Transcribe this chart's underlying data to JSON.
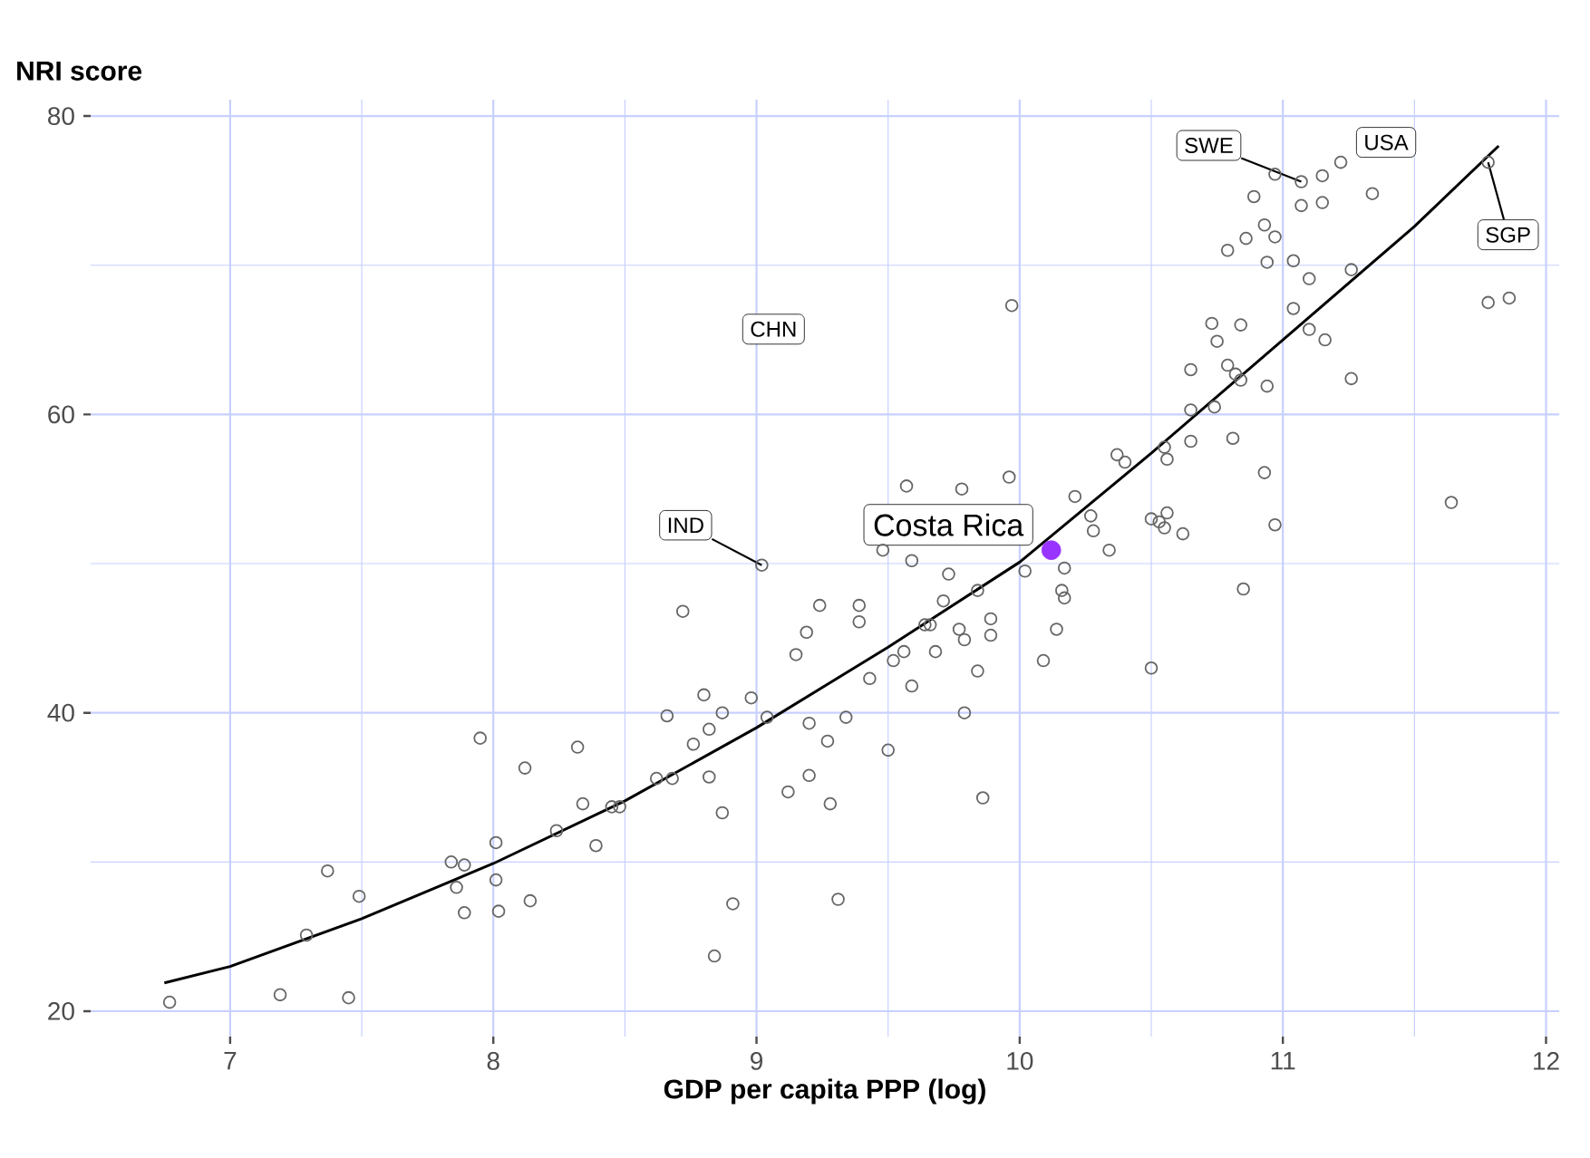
{
  "chart_data": {
    "type": "scatter",
    "xlabel": "GDP per capita PPP (log)",
    "ylabel": "NRI score",
    "xlim": [
      6.47,
      12.05
    ],
    "ylim": [
      18.3,
      81.1
    ],
    "xticks": [
      7,
      {
        "value": 7.5,
        "label": null
      },
      8,
      {
        "value": 8.5,
        "label": null
      },
      9,
      {
        "value": 9.5,
        "label": null
      },
      10,
      {
        "value": 10.5,
        "label": null
      },
      11,
      {
        "value": 11.5,
        "label": null
      },
      12
    ],
    "yticks": [
      20,
      {
        "value": 30,
        "label": null
      },
      40,
      {
        "value": 50,
        "label": null
      },
      60,
      {
        "value": 70,
        "label": null
      },
      80
    ],
    "grid": true,
    "marker": "circle",
    "series": [
      {
        "color": "#666666",
        "x": [
          6.77,
          7.19,
          7.45,
          7.29,
          7.37,
          7.49,
          7.84,
          7.89,
          7.86,
          7.89,
          7.95,
          8.01,
          8.01,
          8.02,
          8.12,
          8.14,
          8.24,
          8.32,
          8.34,
          8.39,
          8.45,
          8.48,
          8.62,
          8.68,
          8.66,
          8.72,
          8.8,
          8.76,
          8.82,
          8.87,
          8.82,
          8.87,
          8.84,
          8.91,
          8.98,
          9.04,
          9.12,
          9.2,
          9.28,
          9.31,
          9.2,
          9.27,
          9.34,
          9.15,
          9.19,
          9.24,
          9.39,
          9.39,
          9.43,
          9.52,
          9.56,
          9.64,
          9.66,
          9.68,
          9.77,
          9.79,
          9.89,
          9.89,
          9.84,
          9.79,
          9.59,
          9.71,
          9.5,
          9.86,
          10.09,
          10.14,
          10.17,
          10.5,
          10.85,
          9.97,
          9.57,
          9.78,
          9.96,
          9.48,
          9.59,
          9.73,
          9.84,
          10.02,
          10.17,
          10.16,
          10.21,
          10.27,
          10.28,
          10.34,
          10.37,
          10.4,
          10.5,
          10.53,
          10.56,
          10.55,
          10.62,
          10.55,
          10.56,
          10.65,
          10.65,
          10.74,
          10.65,
          10.79,
          10.82,
          10.84,
          10.94,
          10.81,
          10.93,
          10.97,
          10.73,
          10.84,
          10.75,
          11.04,
          11.1,
          11.16,
          11.26,
          10.79,
          10.86,
          10.93,
          10.97,
          10.94,
          11.04,
          11.1,
          11.26,
          10.89,
          11.07,
          11.15,
          11.34,
          10.97,
          11.07,
          11.15,
          11.22,
          11.78,
          11.78,
          11.86,
          11.64,
          9.02
        ],
        "values": [
          20.6,
          21.1,
          20.9,
          25.1,
          29.4,
          27.7,
          30.0,
          29.8,
          28.3,
          26.6,
          38.3,
          31.3,
          28.8,
          26.7,
          36.3,
          27.4,
          32.1,
          37.7,
          33.9,
          31.1,
          33.7,
          33.7,
          35.6,
          35.6,
          39.8,
          46.8,
          41.2,
          37.9,
          38.9,
          40.0,
          35.7,
          33.3,
          23.7,
          27.2,
          41.0,
          39.7,
          34.7,
          35.8,
          33.9,
          27.5,
          39.3,
          38.1,
          39.7,
          43.9,
          45.4,
          47.2,
          47.2,
          46.1,
          42.3,
          43.5,
          44.1,
          45.9,
          45.9,
          44.1,
          45.6,
          44.9,
          46.3,
          45.2,
          42.8,
          40.0,
          41.8,
          47.5,
          37.5,
          34.3,
          43.5,
          45.6,
          47.7,
          43.0,
          48.3,
          67.3,
          55.2,
          55.0,
          55.8,
          50.9,
          50.2,
          49.3,
          48.2,
          49.5,
          49.7,
          48.2,
          54.5,
          53.2,
          52.2,
          50.9,
          57.3,
          56.8,
          53.0,
          52.8,
          53.4,
          52.4,
          52.0,
          57.8,
          57.0,
          58.2,
          60.3,
          60.5,
          63.0,
          63.3,
          62.7,
          62.3,
          61.9,
          58.4,
          56.1,
          52.6,
          66.1,
          66.0,
          64.9,
          67.1,
          65.7,
          65.0,
          62.4,
          71.0,
          71.8,
          72.7,
          71.9,
          70.2,
          70.3,
          69.1,
          69.7,
          74.6,
          74.0,
          74.2,
          74.8,
          76.1,
          75.6,
          76.0,
          76.9,
          76.9,
          67.5,
          67.8,
          54.1,
          49.9
        ]
      },
      {
        "type": "line",
        "marker": "none",
        "color": "#000000",
        "x": [
          6.75,
          7,
          7.5,
          8,
          8.5,
          9,
          9.5,
          10,
          10.5,
          11,
          11.5,
          11.82
        ],
        "values": [
          21.9,
          23.0,
          26.2,
          29.9,
          34.1,
          39.0,
          44.4,
          50.1,
          57.4,
          65.0,
          72.6,
          78.0
        ]
      },
      {
        "name": "Costa Rica",
        "color": "#9933ff",
        "x": [
          10.12
        ],
        "values": [
          50.9
        ]
      }
    ],
    "annotations": [
      {
        "text": "IND",
        "x": 9.02,
        "y": 49.9
      },
      "CHN",
      {
        "text": "SWE",
        "x": 11.07,
        "y": 75.6
      },
      {
        "text": "USA",
        "x": 11.22,
        "y": 76.9
      },
      {
        "text": "SGP",
        "x": 11.78,
        "y": 76.9
      }
    ]
  }
}
